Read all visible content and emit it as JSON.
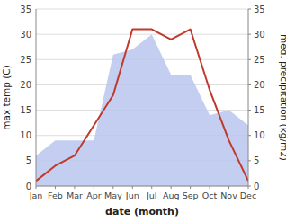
{
  "chart_data": {
    "type": "line",
    "categories": [
      "Jan",
      "Feb",
      "Mar",
      "Apr",
      "May",
      "Jun",
      "Jul",
      "Aug",
      "Sep",
      "Oct",
      "Nov",
      "Dec"
    ],
    "xlabel": "date (month)",
    "ylabel": "max temp (C)",
    "y2label": "med. precipitation (kg/m2)",
    "series": [
      {
        "type": "area",
        "axis": "y2",
        "color": "#b8c5ef",
        "values": [
          6,
          9,
          9,
          9,
          26,
          27,
          30,
          22,
          22,
          14,
          15,
          12
        ]
      },
      {
        "type": "line",
        "color": "#c0392b",
        "values": [
          1,
          4,
          6,
          12,
          18,
          31,
          31,
          29,
          31,
          19,
          9,
          1
        ]
      }
    ],
    "ylim": [
      0,
      35
    ],
    "yticks": [
      0,
      5,
      10,
      15,
      20,
      25,
      30,
      35
    ],
    "y2lim": [
      0,
      35
    ],
    "y2ticks": [
      0,
      5,
      10,
      15,
      20,
      25,
      30,
      35
    ],
    "grid": true
  }
}
